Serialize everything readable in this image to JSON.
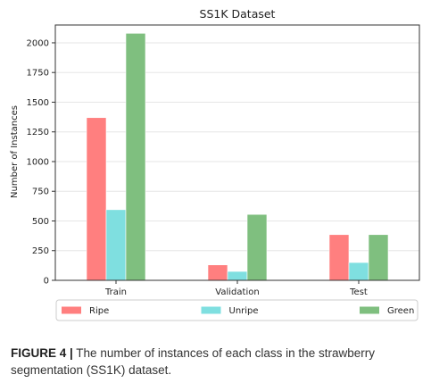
{
  "chart_data": {
    "type": "bar",
    "title": "SS1K Dataset",
    "xlabel": "",
    "ylabel": "Number of Instances",
    "categories": [
      "Train",
      "Validation",
      "Test"
    ],
    "series": [
      {
        "name": "Ripe",
        "color": "#ff7f7f",
        "values": [
          1370,
          130,
          385
        ]
      },
      {
        "name": "Unripe",
        "color": "#7fdfe0",
        "values": [
          595,
          75,
          150
        ]
      },
      {
        "name": "Green",
        "color": "#7fbf7f",
        "values": [
          2080,
          555,
          385
        ]
      }
    ],
    "ylim": [
      0,
      2150
    ],
    "yticks": [
      0,
      250,
      500,
      750,
      1000,
      1250,
      1500,
      1750,
      2000
    ],
    "grid": true,
    "legend_position": "bottom"
  },
  "caption": {
    "label": "FIGURE 4 |",
    "text": " The number of instances of each class in the strawberry segmentation (SS1K) dataset."
  }
}
